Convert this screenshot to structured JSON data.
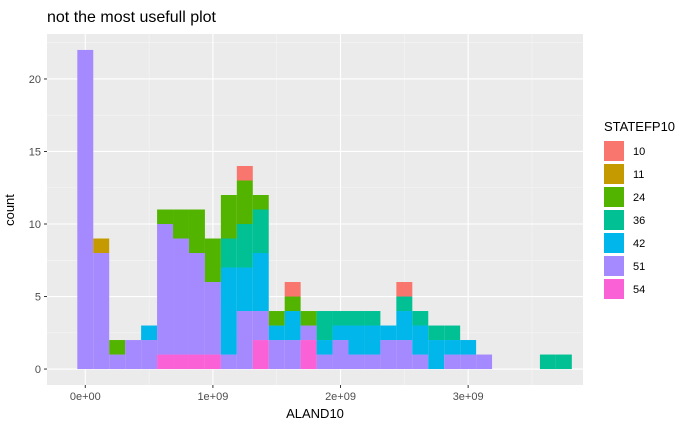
{
  "chart_data": {
    "type": "bar",
    "title": "not the most usefull plot",
    "xlabel": "ALAND10",
    "ylabel": "count",
    "stacked": true,
    "bin_width": 125000000,
    "bin_starts": [
      -62500000,
      62500000,
      187500000,
      312500000,
      437500000,
      562500000,
      687500000,
      812500000,
      937500000,
      1062500000,
      1187500000,
      1312500000,
      1437500000,
      1562500000,
      1687500000,
      1812500000,
      1937500000,
      2062500000,
      2187500000,
      2312500000,
      2437500000,
      2562500000,
      2687500000,
      2812500000,
      2937500000,
      3062500000,
      3187500000,
      3312500000,
      3437500000,
      3562500000,
      3687500000
    ],
    "xlim": [
      -300000000,
      3900000000
    ],
    "ylim": [
      -1.1,
      23.1
    ],
    "x_ticks": [
      {
        "value": 0,
        "label": "0e+00"
      },
      {
        "value": 1000000000,
        "label": "1e+09"
      },
      {
        "value": 2000000000,
        "label": "2e+09"
      },
      {
        "value": 3000000000,
        "label": "3e+09"
      }
    ],
    "y_ticks": [
      {
        "value": 0,
        "label": "0"
      },
      {
        "value": 5,
        "label": "5"
      },
      {
        "value": 10,
        "label": "10"
      },
      {
        "value": 15,
        "label": "15"
      },
      {
        "value": 20,
        "label": "20"
      }
    ],
    "grid": true,
    "panel_background": "#ebebeb",
    "legend": {
      "title": "STATEFP10",
      "position": "right"
    },
    "series": [
      {
        "name": "10",
        "color": "#F8766D",
        "values": [
          0,
          0,
          0,
          0,
          0,
          0,
          0,
          0,
          0,
          0,
          1,
          0,
          0,
          1,
          0,
          0,
          0,
          0,
          0,
          0,
          1,
          0,
          0,
          0,
          0,
          0,
          0,
          0,
          0,
          0,
          0
        ]
      },
      {
        "name": "11",
        "color": "#C49A00",
        "values": [
          0,
          1,
          0,
          0,
          0,
          0,
          0,
          0,
          0,
          0,
          0,
          0,
          0,
          0,
          0,
          0,
          0,
          0,
          0,
          0,
          0,
          0,
          0,
          0,
          0,
          0,
          0,
          0,
          0,
          0,
          0
        ]
      },
      {
        "name": "24",
        "color": "#53B400",
        "values": [
          0,
          0,
          1,
          0,
          0,
          1,
          2,
          3,
          3,
          3,
          3,
          1,
          1,
          1,
          1,
          0,
          0,
          0,
          0,
          0,
          0,
          0,
          0,
          0,
          0,
          0,
          0,
          0,
          0,
          0,
          0
        ]
      },
      {
        "name": "36",
        "color": "#00C094",
        "values": [
          0,
          0,
          0,
          0,
          0,
          0,
          0,
          0,
          0,
          2,
          3,
          3,
          0,
          0,
          0,
          2,
          1,
          1,
          1,
          0,
          1,
          1,
          1,
          1,
          0,
          0,
          0,
          0,
          0,
          1,
          1
        ]
      },
      {
        "name": "42",
        "color": "#00B6EB",
        "values": [
          0,
          0,
          0,
          0,
          1,
          0,
          0,
          0,
          0,
          6,
          3,
          4,
          1,
          2,
          0,
          1,
          1,
          2,
          2,
          1,
          2,
          2,
          2,
          1,
          1,
          0,
          0,
          0,
          0,
          0,
          0
        ]
      },
      {
        "name": "51",
        "color": "#A58AFF",
        "values": [
          22,
          8,
          1,
          2,
          2,
          9,
          8,
          7,
          5,
          1,
          4,
          2,
          2,
          2,
          1,
          1,
          2,
          1,
          1,
          2,
          2,
          1,
          0,
          1,
          1,
          1,
          0,
          0,
          0,
          0,
          0
        ]
      },
      {
        "name": "54",
        "color": "#FB61D7",
        "values": [
          0,
          0,
          0,
          0,
          0,
          1,
          1,
          1,
          1,
          0,
          0,
          2,
          0,
          0,
          2,
          0,
          0,
          0,
          0,
          0,
          0,
          0,
          0,
          0,
          0,
          0,
          0,
          0,
          0,
          0,
          0
        ]
      }
    ]
  }
}
